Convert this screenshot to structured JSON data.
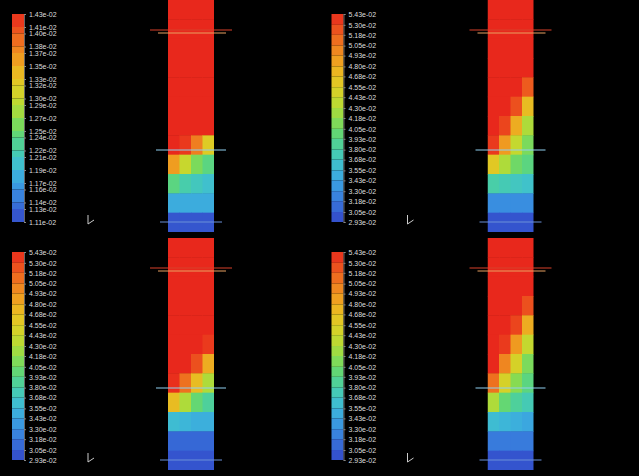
{
  "chart_data": [
    {
      "type": "contour",
      "colorbar_lim": [
        0.0111,
        0.0143
      ],
      "colorbar_ticks": [
        {
          "value": 0.0143,
          "label": "1.43e-02"
        },
        {
          "value": 0.0141,
          "label": "1.41e-02"
        },
        {
          "value": 0.014,
          "label": "1.40e-02"
        },
        {
          "value": 0.0138,
          "label": "1.38e-02"
        },
        {
          "value": 0.0137,
          "label": "1.37e-02"
        },
        {
          "value": 0.0135,
          "label": "1.35e-02"
        },
        {
          "value": 0.0133,
          "label": "1.33e-02"
        },
        {
          "value": 0.0132,
          "label": "1.32e-02"
        },
        {
          "value": 0.013,
          "label": "1.30e-02"
        },
        {
          "value": 0.0129,
          "label": "1.29e-02"
        },
        {
          "value": 0.0127,
          "label": "1.27e-02"
        },
        {
          "value": 0.0125,
          "label": "1.25e-02"
        },
        {
          "value": 0.0124,
          "label": "1.24e-02"
        },
        {
          "value": 0.0122,
          "label": "1.22e-02"
        },
        {
          "value": 0.0121,
          "label": "1.21e-02"
        },
        {
          "value": 0.0119,
          "label": "1.19e-02"
        },
        {
          "value": 0.0117,
          "label": "1.17e-02"
        },
        {
          "value": 0.0116,
          "label": "1.16e-02"
        },
        {
          "value": 0.0114,
          "label": "1.14e-02"
        },
        {
          "value": 0.0113,
          "label": "1.13e-02"
        },
        {
          "value": 0.0111,
          "label": "1.11e-02"
        }
      ],
      "cells": [
        [
          0.0143,
          0.0143,
          0.0143,
          0.0143
        ],
        [
          0.0143,
          0.0143,
          0.0143,
          0.0143
        ],
        [
          0.0143,
          0.0143,
          0.0143,
          0.0143
        ],
        [
          0.0143,
          0.0143,
          0.0143,
          0.0143
        ],
        [
          0.0143,
          0.0143,
          0.0143,
          0.0143
        ],
        [
          0.0143,
          0.0143,
          0.0143,
          0.0143
        ],
        [
          0.0143,
          0.0143,
          0.0143,
          0.0143
        ],
        [
          0.0143,
          0.0142,
          0.0138,
          0.0132
        ],
        [
          0.0136,
          0.013,
          0.0126,
          0.0124
        ],
        [
          0.0124,
          0.0122,
          0.0121,
          0.012
        ],
        [
          0.0118,
          0.0118,
          0.0118,
          0.0118
        ],
        [
          0.0112,
          0.0112,
          0.0112,
          0.0112
        ]
      ]
    },
    {
      "type": "contour",
      "colorbar_lim": [
        0.0293,
        0.0543
      ],
      "colorbar_ticks": [
        {
          "value": 0.0543,
          "label": "5.43e-02"
        },
        {
          "value": 0.053,
          "label": "5.30e-02"
        },
        {
          "value": 0.0518,
          "label": "5.18e-02"
        },
        {
          "value": 0.0505,
          "label": "5.05e-02"
        },
        {
          "value": 0.0493,
          "label": "4.93e-02"
        },
        {
          "value": 0.048,
          "label": "4.80e-02"
        },
        {
          "value": 0.0468,
          "label": "4.68e-02"
        },
        {
          "value": 0.0455,
          "label": "4.55e-02"
        },
        {
          "value": 0.0443,
          "label": "4.43e-02"
        },
        {
          "value": 0.043,
          "label": "4.30e-02"
        },
        {
          "value": 0.0418,
          "label": "4.18e-02"
        },
        {
          "value": 0.0405,
          "label": "4.05e-02"
        },
        {
          "value": 0.0393,
          "label": "3.93e-02"
        },
        {
          "value": 0.038,
          "label": "3.80e-02"
        },
        {
          "value": 0.0368,
          "label": "3.68e-02"
        },
        {
          "value": 0.0355,
          "label": "3.55e-02"
        },
        {
          "value": 0.0343,
          "label": "3.43e-02"
        },
        {
          "value": 0.033,
          "label": "3.30e-02"
        },
        {
          "value": 0.0318,
          "label": "3.18e-02"
        },
        {
          "value": 0.0305,
          "label": "3.05e-02"
        },
        {
          "value": 0.0293,
          "label": "2.93e-02"
        }
      ],
      "cells": [
        [
          0.0543,
          0.0543,
          0.0543,
          0.0543
        ],
        [
          0.0543,
          0.0543,
          0.0543,
          0.0543
        ],
        [
          0.0543,
          0.0543,
          0.0543,
          0.0543
        ],
        [
          0.0543,
          0.0543,
          0.0543,
          0.0543
        ],
        [
          0.0543,
          0.0543,
          0.0543,
          0.052
        ],
        [
          0.0543,
          0.0543,
          0.0525,
          0.047
        ],
        [
          0.0543,
          0.053,
          0.048,
          0.043
        ],
        [
          0.0535,
          0.049,
          0.044,
          0.041
        ],
        [
          0.046,
          0.043,
          0.0405,
          0.0395
        ],
        [
          0.038,
          0.0375,
          0.037,
          0.0365
        ],
        [
          0.033,
          0.033,
          0.033,
          0.033
        ],
        [
          0.03,
          0.03,
          0.03,
          0.03
        ]
      ]
    },
    {
      "type": "contour",
      "colorbar_lim": [
        0.0293,
        0.0543
      ],
      "colorbar_ticks": [
        {
          "value": 0.0543,
          "label": "5.43e-02"
        },
        {
          "value": 0.053,
          "label": "5.30e-02"
        },
        {
          "value": 0.0518,
          "label": "5.18e-02"
        },
        {
          "value": 0.0505,
          "label": "5.05e-02"
        },
        {
          "value": 0.0493,
          "label": "4.93e-02"
        },
        {
          "value": 0.048,
          "label": "4.80e-02"
        },
        {
          "value": 0.0468,
          "label": "4.68e-02"
        },
        {
          "value": 0.0455,
          "label": "4.55e-02"
        },
        {
          "value": 0.0443,
          "label": "4.43e-02"
        },
        {
          "value": 0.043,
          "label": "4.30e-02"
        },
        {
          "value": 0.0418,
          "label": "4.18e-02"
        },
        {
          "value": 0.0405,
          "label": "4.05e-02"
        },
        {
          "value": 0.0393,
          "label": "3.93e-02"
        },
        {
          "value": 0.038,
          "label": "3.80e-02"
        },
        {
          "value": 0.0368,
          "label": "3.68e-02"
        },
        {
          "value": 0.0355,
          "label": "3.55e-02"
        },
        {
          "value": 0.0343,
          "label": "3.43e-02"
        },
        {
          "value": 0.033,
          "label": "3.30e-02"
        },
        {
          "value": 0.0318,
          "label": "3.18e-02"
        },
        {
          "value": 0.0305,
          "label": "3.05e-02"
        },
        {
          "value": 0.0293,
          "label": "2.93e-02"
        }
      ],
      "cells": [
        [
          0.0543,
          0.0543,
          0.0543,
          0.0543
        ],
        [
          0.0543,
          0.0543,
          0.0543,
          0.0543
        ],
        [
          0.0543,
          0.0543,
          0.0543,
          0.0543
        ],
        [
          0.0543,
          0.0543,
          0.0543,
          0.0543
        ],
        [
          0.0543,
          0.0543,
          0.0543,
          0.0543
        ],
        [
          0.0543,
          0.0543,
          0.0543,
          0.0535
        ],
        [
          0.0543,
          0.0543,
          0.0525,
          0.048
        ],
        [
          0.054,
          0.051,
          0.047,
          0.043
        ],
        [
          0.047,
          0.043,
          0.04,
          0.0385
        ],
        [
          0.036,
          0.0355,
          0.035,
          0.035
        ],
        [
          0.031,
          0.031,
          0.031,
          0.031
        ],
        [
          0.03,
          0.03,
          0.03,
          0.03
        ]
      ]
    },
    {
      "type": "contour",
      "colorbar_lim": [
        0.0293,
        0.0543
      ],
      "colorbar_ticks": [
        {
          "value": 0.0543,
          "label": "5.43e-02"
        },
        {
          "value": 0.053,
          "label": "5.30e-02"
        },
        {
          "value": 0.0518,
          "label": "5.18e-02"
        },
        {
          "value": 0.0505,
          "label": "5.05e-02"
        },
        {
          "value": 0.0493,
          "label": "4.93e-02"
        },
        {
          "value": 0.048,
          "label": "4.80e-02"
        },
        {
          "value": 0.0468,
          "label": "4.68e-02"
        },
        {
          "value": 0.0455,
          "label": "4.55e-02"
        },
        {
          "value": 0.0443,
          "label": "4.43e-02"
        },
        {
          "value": 0.043,
          "label": "4.30e-02"
        },
        {
          "value": 0.0418,
          "label": "4.18e-02"
        },
        {
          "value": 0.0405,
          "label": "4.05e-02"
        },
        {
          "value": 0.0393,
          "label": "3.93e-02"
        },
        {
          "value": 0.038,
          "label": "3.80e-02"
        },
        {
          "value": 0.0368,
          "label": "3.68e-02"
        },
        {
          "value": 0.0355,
          "label": "3.55e-02"
        },
        {
          "value": 0.0343,
          "label": "3.43e-02"
        },
        {
          "value": 0.033,
          "label": "3.30e-02"
        },
        {
          "value": 0.0318,
          "label": "3.18e-02"
        },
        {
          "value": 0.0305,
          "label": "3.05e-02"
        },
        {
          "value": 0.0293,
          "label": "2.93e-02"
        }
      ],
      "cells": [
        [
          0.0543,
          0.0543,
          0.0543,
          0.0543
        ],
        [
          0.0543,
          0.0543,
          0.0543,
          0.0543
        ],
        [
          0.0543,
          0.0543,
          0.0543,
          0.0543
        ],
        [
          0.0543,
          0.0543,
          0.0543,
          0.0525
        ],
        [
          0.0543,
          0.0543,
          0.053,
          0.048
        ],
        [
          0.0543,
          0.0535,
          0.049,
          0.044
        ],
        [
          0.0543,
          0.05,
          0.045,
          0.041
        ],
        [
          0.051,
          0.045,
          0.0415,
          0.0395
        ],
        [
          0.043,
          0.04,
          0.0385,
          0.0375
        ],
        [
          0.036,
          0.0355,
          0.035,
          0.0345
        ],
        [
          0.032,
          0.032,
          0.032,
          0.032
        ],
        [
          0.03,
          0.03,
          0.03,
          0.03
        ]
      ]
    }
  ]
}
